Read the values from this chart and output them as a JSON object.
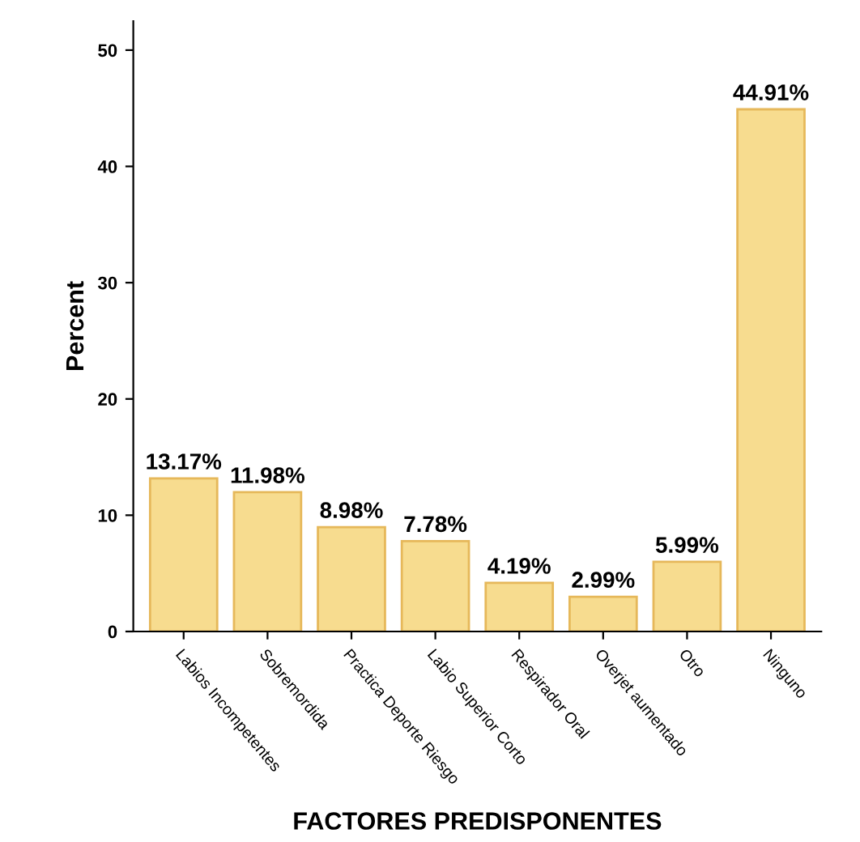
{
  "chart_data": {
    "type": "bar",
    "xlabel": "FACTORES PREDISPONENTES",
    "ylabel": "Percent",
    "categories": [
      "Labios Incompetentes",
      "Sobremordida",
      "Practica Deporte Riesgo",
      "Labio Superior Corto",
      "Respirador Oral",
      "Overjet aumentado",
      "Otro",
      "Ninguno"
    ],
    "values": [
      13.17,
      11.98,
      8.98,
      7.78,
      4.19,
      2.99,
      5.99,
      44.91
    ],
    "value_labels": [
      "13.17%",
      "11.98%",
      "8.98%",
      "7.78%",
      "4.19%",
      "2.99%",
      "5.99%",
      "44.91%"
    ],
    "color": "#f7dc8f",
    "ylim": [
      0,
      52.5
    ],
    "yticks": [
      0,
      10,
      20,
      30,
      40,
      50
    ],
    "grid": false,
    "legend": false
  }
}
